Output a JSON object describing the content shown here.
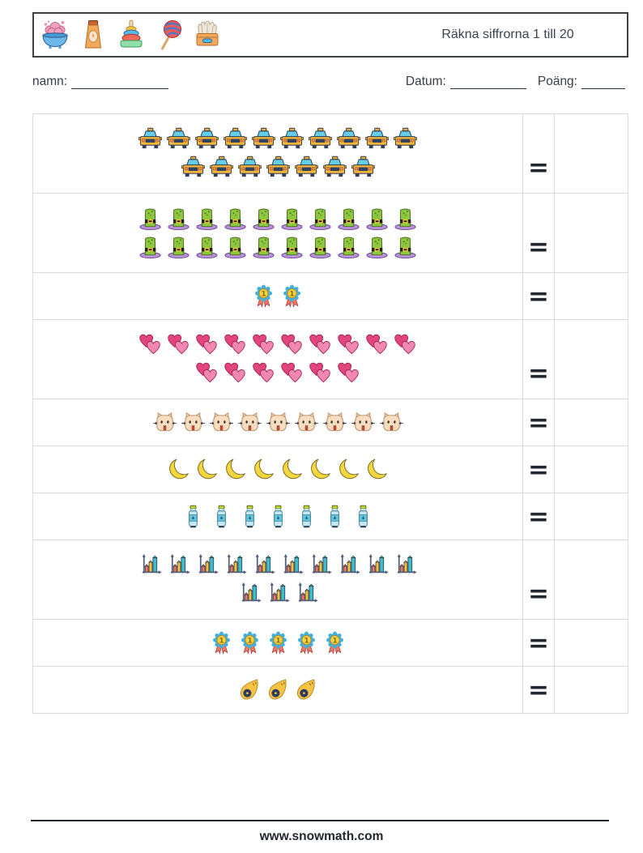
{
  "header": {
    "title": "Räkna siffrorna 1 till 20",
    "icons": [
      "potion-bowl-icon",
      "cream-tube-icon",
      "ring-stacker-icon",
      "lollipop-icon",
      "wipes-box-icon"
    ]
  },
  "fields": {
    "name_label": "namn:",
    "date_label": "Datum:",
    "score_label": "Poäng:"
  },
  "table": {
    "equals_symbol": "=",
    "rows": [
      {
        "icon": "taxi",
        "label": "oncoming-taxi",
        "count": 17,
        "lines": [
          10,
          7
        ]
      },
      {
        "icon": "hat",
        "label": "green-top-hat",
        "count": 20,
        "lines": [
          10,
          10
        ]
      },
      {
        "icon": "medal",
        "label": "first-place-medal",
        "count": 2,
        "lines": [
          2
        ]
      },
      {
        "icon": "hearts",
        "label": "two-hearts",
        "count": 16,
        "lines": [
          10,
          6
        ]
      },
      {
        "icon": "cat",
        "label": "cat-face",
        "count": 9,
        "lines": [
          9
        ]
      },
      {
        "icon": "moon",
        "label": "crescent-moon",
        "count": 8,
        "lines": [
          8
        ]
      },
      {
        "icon": "bottle",
        "label": "water-bottle",
        "count": 7,
        "lines": [
          7
        ]
      },
      {
        "icon": "chart",
        "label": "increasing-bar-chart",
        "count": 13,
        "lines": [
          10,
          3
        ]
      },
      {
        "icon": "medal",
        "label": "first-place-medal",
        "count": 5,
        "lines": [
          5
        ]
      },
      {
        "icon": "comet",
        "label": "comet",
        "count": 3,
        "lines": [
          3
        ]
      }
    ]
  },
  "footer": {
    "website": "www.snowmath.com"
  },
  "colors": {
    "header_border": "#3a4048",
    "table_border": "#d9dbe3",
    "text": "#3a4352",
    "equals": "#23272f",
    "taxi_body": "#f2b53e",
    "hat_green": "#8dc63f",
    "hat_brim": "#b991dd",
    "medal_rosette": "#41b0dd",
    "heart_back": "#e2447c",
    "heart_front": "#f287b2",
    "moon_yellow": "#f4d63f",
    "bottle_blue": "#c5e8f2",
    "comet_orange": "#f6c343"
  }
}
